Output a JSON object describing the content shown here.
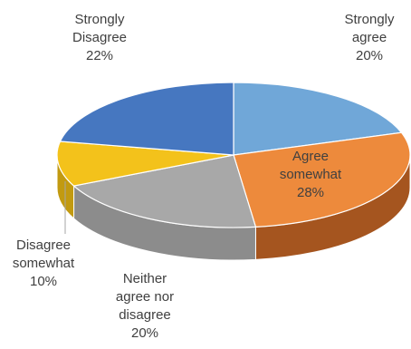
{
  "chart_data": {
    "type": "pie",
    "three_d": true,
    "title": "",
    "slices": [
      {
        "name": "Strongly agree",
        "label_lines": [
          "Strongly",
          "agree"
        ],
        "value": 20,
        "value_label": "20%",
        "color": "#70A7D8",
        "side_color": "#4C80AE"
      },
      {
        "name": "Agree somewhat",
        "label_lines": [
          "Agree",
          "somewhat"
        ],
        "value": 28,
        "value_label": "28%",
        "color": "#ED8A3C",
        "side_color": "#A5551F"
      },
      {
        "name": "Neither agree nor disagree",
        "label_lines": [
          "Neither",
          "agree nor",
          "disagree"
        ],
        "value": 20,
        "value_label": "20%",
        "color": "#A8A8A8",
        "side_color": "#8C8C8C"
      },
      {
        "name": "Disagree somewhat",
        "label_lines": [
          "Disagree",
          "somewhat"
        ],
        "value": 10,
        "value_label": "10%",
        "color": "#F3C21B",
        "side_color": "#C29A10"
      },
      {
        "name": "Strongly Disagree",
        "label_lines": [
          "Strongly",
          "Disagree"
        ],
        "value": 22,
        "value_label": "22%",
        "color": "#4677C0",
        "side_color": "#2F5590"
      }
    ],
    "legend": "none",
    "label_placement": "outside-with-leader-lines"
  }
}
